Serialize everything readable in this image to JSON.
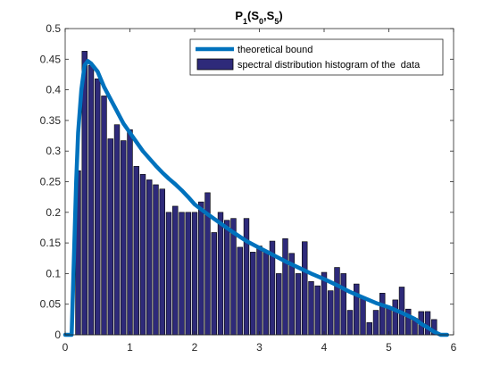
{
  "chart_data": {
    "type": "bar",
    "title": {
      "parts": [
        {
          "text": "P",
          "sub": false
        },
        {
          "text": "1",
          "sub": true
        },
        {
          "text": "(S",
          "sub": false
        },
        {
          "text": "0",
          "sub": true
        },
        {
          "text": ",S",
          "sub": false
        },
        {
          "text": "5",
          "sub": true
        },
        {
          "text": ")",
          "sub": false
        }
      ]
    },
    "xlabel": "",
    "ylabel": "",
    "xlim": [
      0,
      6
    ],
    "ylim": [
      0,
      0.5
    ],
    "x_ticks": [
      0,
      1,
      2,
      3,
      4,
      5,
      6
    ],
    "x_tick_labels": [
      "0",
      "1",
      "2",
      "3",
      "4",
      "5",
      "6"
    ],
    "y_ticks": [
      0,
      0.05,
      0.1,
      0.15,
      0.2,
      0.25,
      0.3,
      0.35,
      0.4,
      0.45,
      0.5
    ],
    "y_tick_labels": [
      "0",
      "0.05",
      "0.1",
      "0.15",
      "0.2",
      "0.25",
      "0.3",
      "0.35",
      "0.4",
      "0.45",
      "0.5"
    ],
    "grid": false,
    "legend_position": "top-right",
    "series": [
      {
        "name": "theoretical bound",
        "type": "line",
        "color": "#0072BD",
        "x": [
          0.0,
          0.1,
          0.17,
          0.2,
          0.25,
          0.3,
          0.35,
          0.4,
          0.5,
          0.6,
          0.7,
          0.8,
          0.9,
          1.0,
          1.1,
          1.2,
          1.3,
          1.4,
          1.5,
          1.6,
          1.7,
          1.8,
          1.9,
          2.0,
          2.2,
          2.4,
          2.6,
          2.8,
          3.0,
          3.2,
          3.4,
          3.6,
          3.8,
          4.0,
          4.2,
          4.4,
          4.6,
          4.8,
          5.0,
          5.2,
          5.4,
          5.5,
          5.6,
          5.7,
          5.8,
          5.85,
          5.9
        ],
        "y": [
          0.0,
          0.0,
          0.25,
          0.33,
          0.4,
          0.44,
          0.447,
          0.443,
          0.43,
          0.405,
          0.385,
          0.365,
          0.345,
          0.33,
          0.315,
          0.3,
          0.288,
          0.276,
          0.265,
          0.255,
          0.246,
          0.236,
          0.225,
          0.213,
          0.197,
          0.182,
          0.167,
          0.153,
          0.142,
          0.131,
          0.12,
          0.11,
          0.1,
          0.091,
          0.081,
          0.07,
          0.061,
          0.052,
          0.045,
          0.036,
          0.026,
          0.018,
          0.012,
          0.005,
          0.0,
          0.0,
          0.0
        ]
      },
      {
        "name": "spectral distribution histogram of the  data",
        "type": "bar",
        "color": "#2E2A7A",
        "edge_color": "#000000",
        "bin_width": 0.1,
        "x": [
          0.2,
          0.3,
          0.4,
          0.5,
          0.6,
          0.7,
          0.8,
          0.9,
          1.0,
          1.1,
          1.2,
          1.3,
          1.4,
          1.5,
          1.6,
          1.7,
          1.8,
          1.9,
          2.0,
          2.1,
          2.2,
          2.3,
          2.4,
          2.5,
          2.6,
          2.7,
          2.8,
          2.9,
          3.0,
          3.1,
          3.2,
          3.3,
          3.4,
          3.5,
          3.6,
          3.7,
          3.8,
          3.9,
          4.0,
          4.1,
          4.2,
          4.3,
          4.4,
          4.5,
          4.6,
          4.7,
          4.8,
          4.9,
          5.0,
          5.1,
          5.2,
          5.3,
          5.4,
          5.5,
          5.6,
          5.7
        ],
        "values": [
          0.268,
          0.463,
          0.44,
          0.418,
          0.39,
          0.32,
          0.343,
          0.317,
          0.335,
          0.275,
          0.262,
          0.253,
          0.245,
          0.238,
          0.2,
          0.21,
          0.2,
          0.2,
          0.2,
          0.217,
          0.232,
          0.167,
          0.2,
          0.187,
          0.19,
          0.143,
          0.19,
          0.135,
          0.145,
          0.135,
          0.153,
          0.1,
          0.157,
          0.133,
          0.1,
          0.152,
          0.087,
          0.08,
          0.102,
          0.072,
          0.11,
          0.1,
          0.04,
          0.083,
          0.062,
          0.02,
          0.04,
          0.068,
          0.043,
          0.057,
          0.078,
          0.042,
          0.027,
          0.038,
          0.038,
          0.025
        ]
      }
    ]
  }
}
